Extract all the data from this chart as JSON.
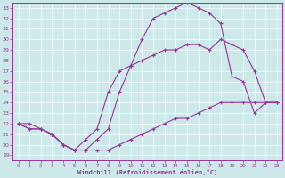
{
  "xlabel": "Windchill (Refroidissement éolien,°C)",
  "bg_color": "#cce8e8",
  "line_color": "#993399",
  "grid_color": "#aacccc",
  "xlim": [
    -0.5,
    23.5
  ],
  "ylim": [
    18.5,
    33.5
  ],
  "xticks": [
    0,
    1,
    2,
    3,
    4,
    5,
    6,
    7,
    8,
    9,
    10,
    11,
    12,
    13,
    14,
    15,
    16,
    17,
    18,
    19,
    20,
    21,
    22,
    23
  ],
  "yticks": [
    19,
    20,
    21,
    22,
    23,
    24,
    25,
    26,
    27,
    28,
    29,
    30,
    31,
    32,
    33
  ],
  "line1_x": [
    0,
    1,
    2,
    3,
    4,
    5,
    6,
    7,
    8,
    9,
    10,
    11,
    12,
    13,
    14,
    15,
    16,
    17,
    18,
    19,
    20,
    21,
    22,
    23
  ],
  "line1_y": [
    22.0,
    21.5,
    21.5,
    21.0,
    20.0,
    19.5,
    19.5,
    19.5,
    19.5,
    20.0,
    20.5,
    21.0,
    21.5,
    22.0,
    22.5,
    22.5,
    23.0,
    23.5,
    24.0,
    24.0,
    24.0,
    24.0,
    24.0,
    24.0
  ],
  "line2_x": [
    0,
    1,
    2,
    3,
    4,
    5,
    6,
    7,
    8,
    9,
    10,
    11,
    12,
    13,
    14,
    15,
    16,
    17,
    18,
    19,
    20,
    21,
    22,
    23
  ],
  "line2_y": [
    22.0,
    21.5,
    21.5,
    21.0,
    20.0,
    19.5,
    19.5,
    20.5,
    21.5,
    25.0,
    27.5,
    30.0,
    32.0,
    32.5,
    33.0,
    33.5,
    33.0,
    32.5,
    31.5,
    26.5,
    26.0,
    23.0,
    24.0,
    24.0
  ],
  "line3_x": [
    0,
    1,
    2,
    3,
    4,
    5,
    6,
    7,
    8,
    9,
    10,
    11,
    12,
    13,
    14,
    15,
    16,
    17,
    18,
    19,
    20,
    21,
    22,
    23
  ],
  "line3_y": [
    22.0,
    22.0,
    21.5,
    21.0,
    20.0,
    19.5,
    20.5,
    21.5,
    25.0,
    27.0,
    27.5,
    28.0,
    28.5,
    29.0,
    29.0,
    29.5,
    29.5,
    29.0,
    30.0,
    29.5,
    29.0,
    27.0,
    24.0,
    24.0
  ]
}
